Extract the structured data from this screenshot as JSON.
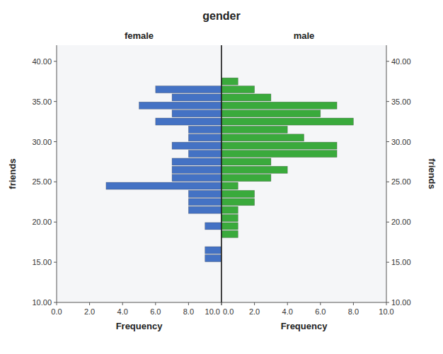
{
  "chart_data": {
    "type": "histogram",
    "title": "gender",
    "orientation": "horizontal",
    "xlabel": "Frequency",
    "ylabel": "friends",
    "grid": false,
    "bins": [
      10,
      15,
      16,
      17,
      18,
      19,
      20,
      21,
      22,
      23,
      24,
      25,
      26,
      27,
      28,
      29,
      30,
      31,
      32,
      33,
      34,
      35,
      36,
      37,
      38,
      39
    ],
    "xlim": [
      0,
      10
    ],
    "ylim": [
      10,
      42
    ],
    "yticks": [
      {
        "value": 10,
        "label": "10.00"
      },
      {
        "value": 15,
        "label": "15.00"
      },
      {
        "value": 20,
        "label": "20.00"
      },
      {
        "value": 25,
        "label": "25.00"
      },
      {
        "value": 30,
        "label": "30.00"
      },
      {
        "value": 35,
        "label": "35.00"
      },
      {
        "value": 40,
        "label": "40.00"
      }
    ],
    "series": [
      {
        "name": "female",
        "color": "#4472c4",
        "values": [
          0,
          1,
          1,
          0,
          0,
          1,
          0,
          2,
          2,
          2,
          7,
          3,
          3,
          3,
          2,
          3,
          2,
          2,
          4,
          3,
          5,
          3,
          4,
          0,
          0
        ],
        "xticks": [
          {
            "value": 0,
            "label": "10.0"
          },
          {
            "value": 2,
            "label": "8.0"
          },
          {
            "value": 4,
            "label": "6.0"
          },
          {
            "value": 6,
            "label": "4.0"
          },
          {
            "value": 8,
            "label": "2.0"
          },
          {
            "value": 10,
            "label": "0.0"
          }
        ]
      },
      {
        "name": "male",
        "color": "#3aaa3c",
        "values": [
          0,
          0,
          0,
          0,
          1,
          1,
          1,
          1,
          2,
          2,
          1,
          3,
          4,
          3,
          7,
          7,
          5,
          4,
          8,
          6,
          7,
          3,
          2,
          1,
          0
        ],
        "xticks": [
          {
            "value": 0,
            "label": "0.0"
          },
          {
            "value": 2,
            "label": "2.0"
          },
          {
            "value": 4,
            "label": "4.0"
          },
          {
            "value": 6,
            "label": "6.0"
          },
          {
            "value": 8,
            "label": "8.0"
          },
          {
            "value": 10,
            "label": "10.0"
          }
        ]
      }
    ]
  }
}
